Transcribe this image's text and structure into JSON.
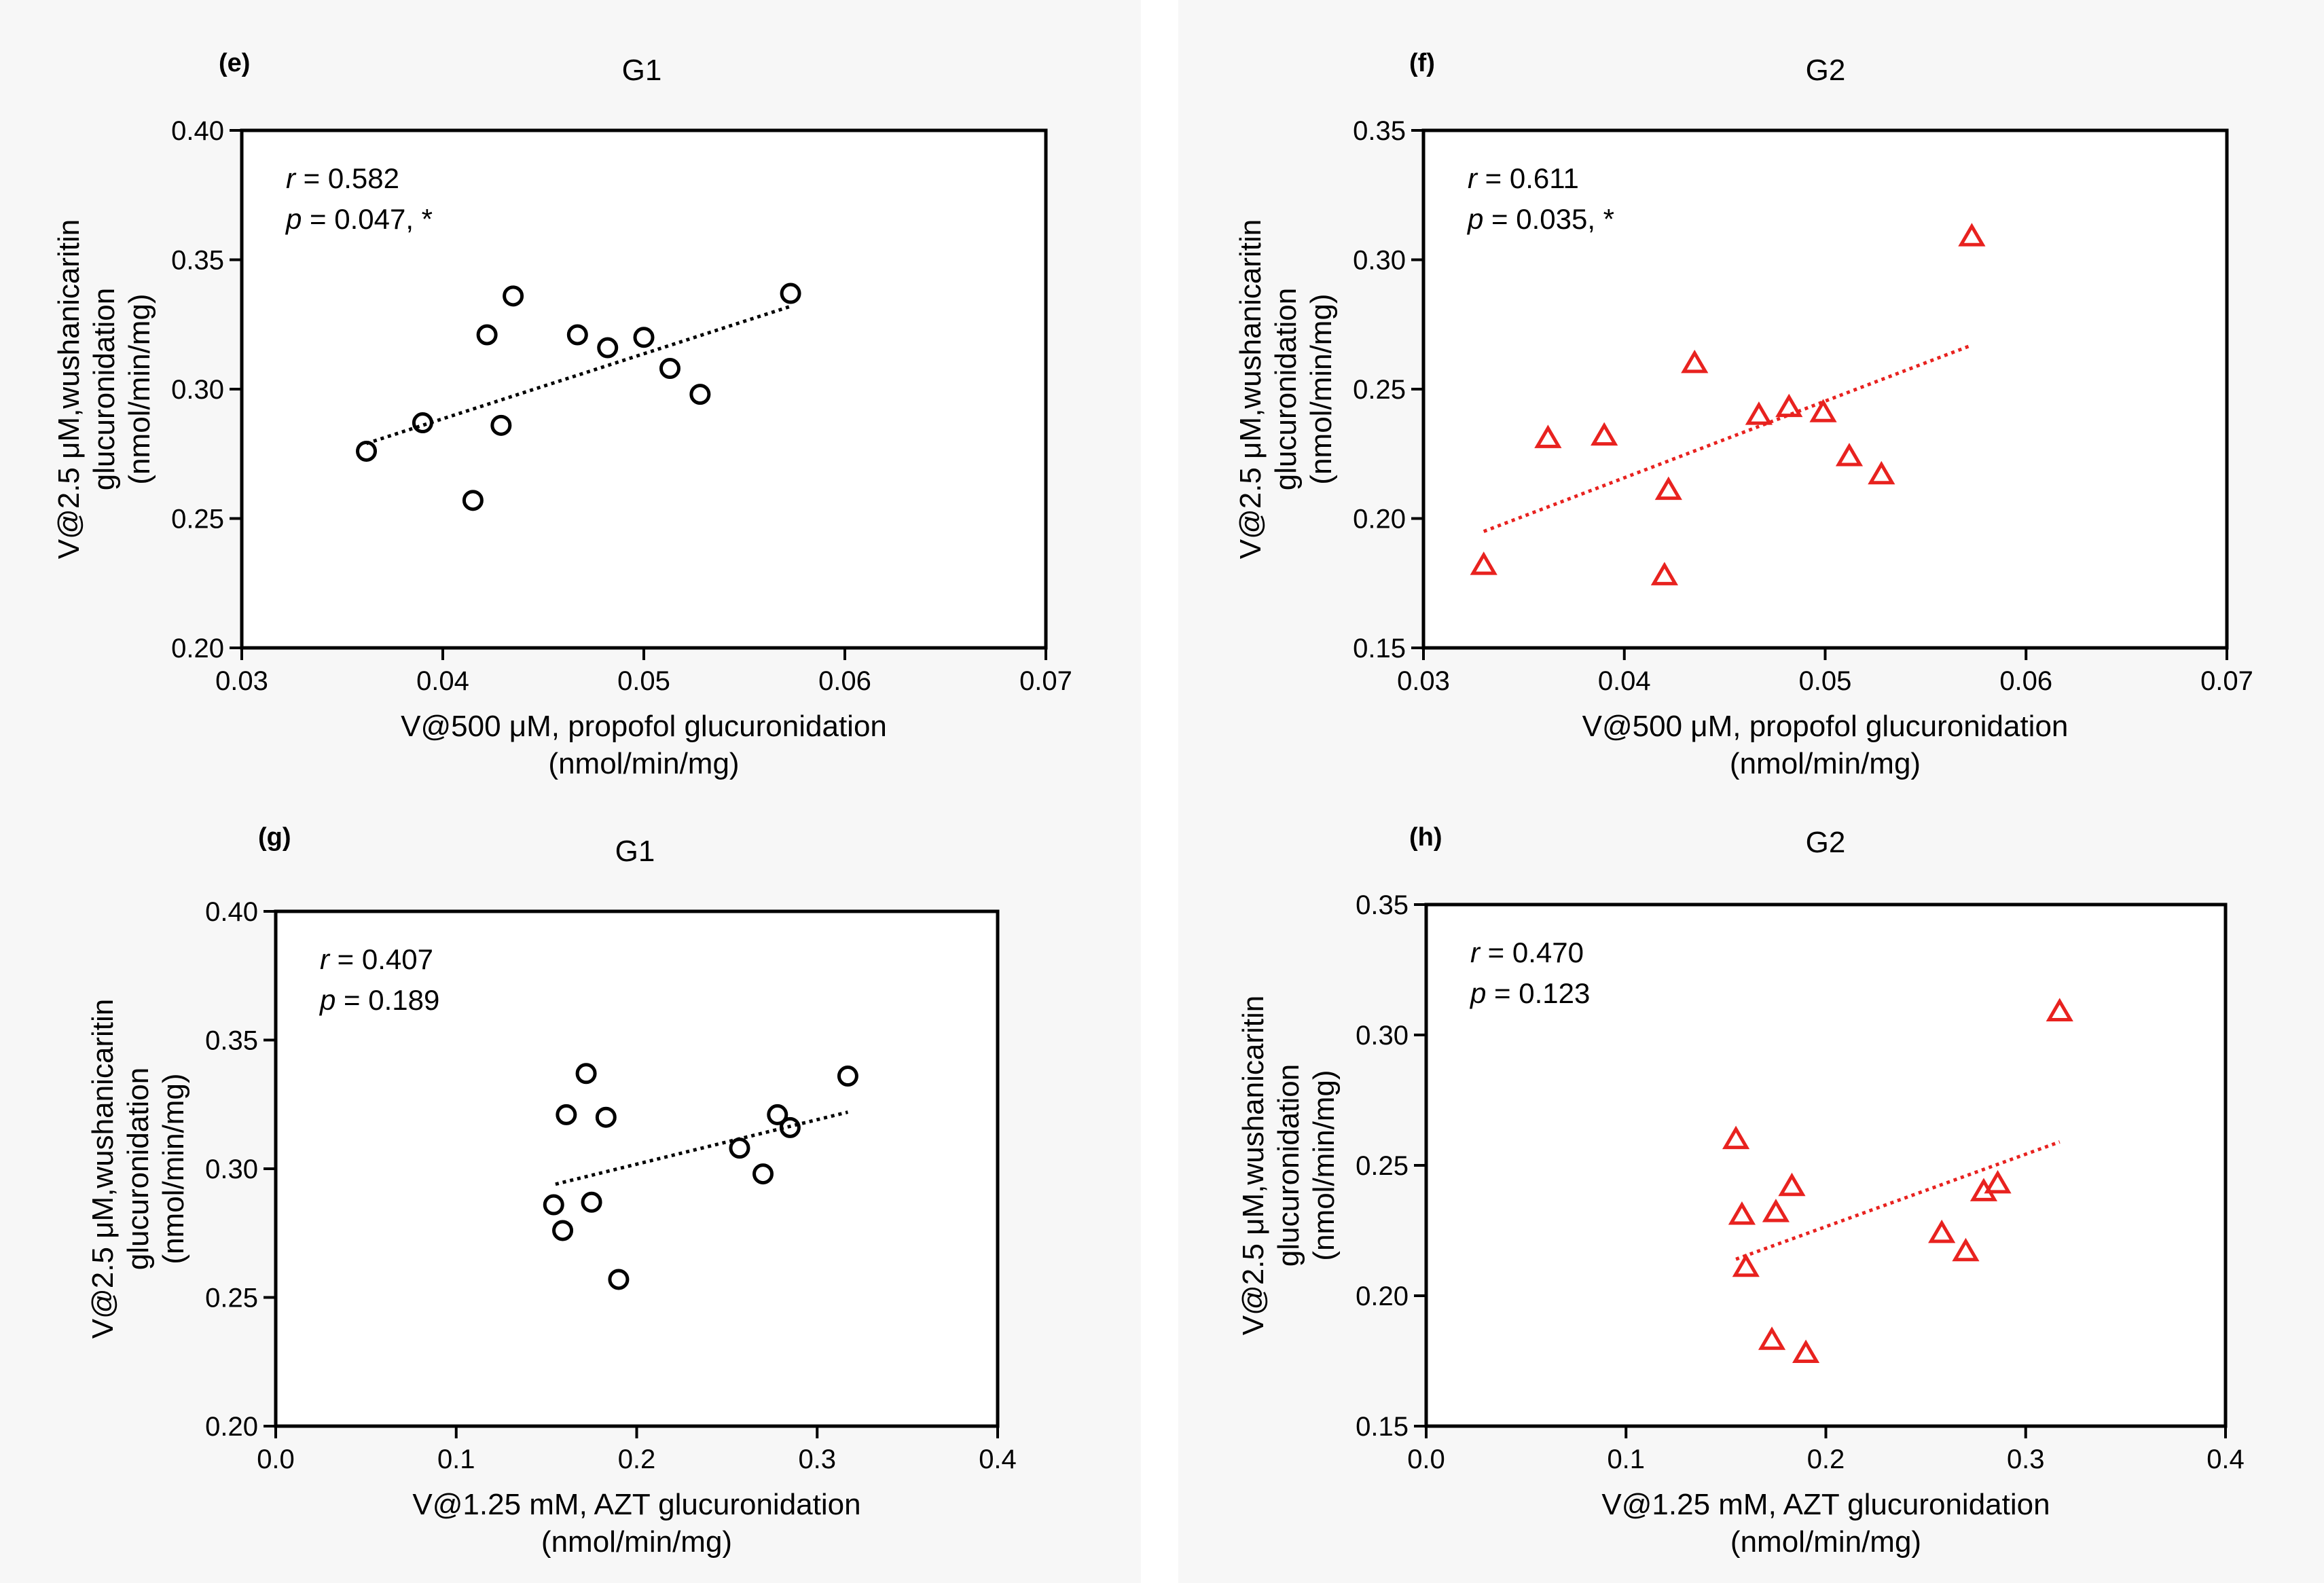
{
  "chart_data": [
    {
      "type": "scatter",
      "panel": "(e)",
      "title": "G1",
      "xlabel": [
        "V@500 μM, propofol glucuronidation",
        "(nmol/min/mg)"
      ],
      "ylabel": [
        "V@2.5 μM,wushanicaritin",
        "glucuronidation",
        "(nmol/min/mg)"
      ],
      "xlim": [
        0.03,
        0.07
      ],
      "ylim": [
        0.2,
        0.4
      ],
      "xticks": [
        0.03,
        0.04,
        0.05,
        0.06,
        0.07
      ],
      "xtick_labels": [
        "0.03",
        "0.04",
        "0.05",
        "0.06",
        "0.07"
      ],
      "yticks": [
        0.2,
        0.25,
        0.3,
        0.35,
        0.4
      ],
      "ytick_labels": [
        "0.20",
        "0.25",
        "0.30",
        "0.35",
        "0.40"
      ],
      "stats": {
        "r_label": "r",
        "r_text": " = 0.582",
        "p_label": "p",
        "p_text": " = 0.047, *"
      },
      "marker": "circle",
      "color": "#000000",
      "trendline": {
        "x": [
          0.0362,
          0.0573
        ],
        "y": [
          0.279,
          0.332
        ]
      },
      "x": [
        0.0362,
        0.039,
        0.0415,
        0.0422,
        0.0429,
        0.0435,
        0.0467,
        0.0482,
        0.05,
        0.0513,
        0.0528,
        0.0573
      ],
      "y": [
        0.276,
        0.287,
        0.257,
        0.321,
        0.286,
        0.336,
        0.321,
        0.316,
        0.32,
        0.308,
        0.298,
        0.337
      ]
    },
    {
      "type": "scatter",
      "panel": "(f)",
      "title": "G2",
      "xlabel": [
        "V@500 μM, propofol glucuronidation",
        "(nmol/min/mg)"
      ],
      "ylabel": [
        "V@2.5 μM,wushanicaritin",
        "glucuronidation",
        "(nmol/min/mg)"
      ],
      "xlim": [
        0.03,
        0.07
      ],
      "ylim": [
        0.15,
        0.35
      ],
      "xticks": [
        0.03,
        0.04,
        0.05,
        0.06,
        0.07
      ],
      "xtick_labels": [
        "0.03",
        "0.04",
        "0.05",
        "0.06",
        "0.07"
      ],
      "yticks": [
        0.15,
        0.2,
        0.25,
        0.3,
        0.35
      ],
      "ytick_labels": [
        "0.15",
        "0.20",
        "0.25",
        "0.30",
        "0.35"
      ],
      "stats": {
        "r_label": "r",
        "r_text": " = 0.611",
        "p_label": "p",
        "p_text": " = 0.035, *"
      },
      "marker": "triangle",
      "color": "#e8221f",
      "trendline": {
        "x": [
          0.033,
          0.0573
        ],
        "y": [
          0.195,
          0.267
        ]
      },
      "x": [
        0.033,
        0.0362,
        0.039,
        0.042,
        0.0422,
        0.0435,
        0.0467,
        0.0482,
        0.0499,
        0.0512,
        0.0528,
        0.0573
      ],
      "y": [
        0.182,
        0.231,
        0.232,
        0.178,
        0.211,
        0.26,
        0.24,
        0.243,
        0.241,
        0.224,
        0.217,
        0.309
      ]
    },
    {
      "type": "scatter",
      "panel": "(g)",
      "title": "G1",
      "xlabel": [
        "V@1.25 mM, AZT glucuronidation",
        "(nmol/min/mg)"
      ],
      "ylabel": [
        "V@2.5 μM,wushanicaritin",
        "glucuronidation",
        "(nmol/min/mg)"
      ],
      "xlim": [
        0.0,
        0.4
      ],
      "ylim": [
        0.2,
        0.4
      ],
      "xticks": [
        0.0,
        0.1,
        0.2,
        0.3,
        0.4
      ],
      "xtick_labels": [
        "0.0",
        "0.1",
        "0.2",
        "0.3",
        "0.4"
      ],
      "yticks": [
        0.2,
        0.25,
        0.3,
        0.35,
        0.4
      ],
      "ytick_labels": [
        "0.20",
        "0.25",
        "0.30",
        "0.35",
        "0.40"
      ],
      "stats": {
        "r_label": "r",
        "r_text": " = 0.407",
        "p_label": "p",
        "p_text": " = 0.189"
      },
      "marker": "circle",
      "color": "#000000",
      "trendline": {
        "x": [
          0.155,
          0.317
        ],
        "y": [
          0.294,
          0.322
        ]
      },
      "x": [
        0.154,
        0.159,
        0.161,
        0.172,
        0.175,
        0.183,
        0.19,
        0.257,
        0.27,
        0.278,
        0.285,
        0.317
      ],
      "y": [
        0.286,
        0.276,
        0.321,
        0.337,
        0.287,
        0.32,
        0.257,
        0.308,
        0.298,
        0.321,
        0.316,
        0.336
      ]
    },
    {
      "type": "scatter",
      "panel": "(h)",
      "title": "G2",
      "xlabel": [
        "V@1.25 mM, AZT glucuronidation",
        "(nmol/min/mg)"
      ],
      "ylabel": [
        "V@2.5 μM,wushanicaritin",
        "glucuronidation",
        "(nmol/min/mg)"
      ],
      "xlim": [
        0.0,
        0.4
      ],
      "ylim": [
        0.15,
        0.35
      ],
      "xticks": [
        0.0,
        0.1,
        0.2,
        0.3,
        0.4
      ],
      "xtick_labels": [
        "0.0",
        "0.1",
        "0.2",
        "0.3",
        "0.4"
      ],
      "yticks": [
        0.15,
        0.2,
        0.25,
        0.3,
        0.35
      ],
      "ytick_labels": [
        "0.15",
        "0.20",
        "0.25",
        "0.30",
        "0.35"
      ],
      "stats": {
        "r_label": "r",
        "r_text": " = 0.470",
        "p_label": "p",
        "p_text": " = 0.123"
      },
      "marker": "triangle",
      "color": "#e8221f",
      "trendline": {
        "x": [
          0.155,
          0.317
        ],
        "y": [
          0.214,
          0.259
        ]
      },
      "x": [
        0.155,
        0.158,
        0.16,
        0.173,
        0.175,
        0.183,
        0.19,
        0.258,
        0.27,
        0.279,
        0.286,
        0.317
      ],
      "y": [
        0.26,
        0.231,
        0.211,
        0.183,
        0.232,
        0.242,
        0.178,
        0.224,
        0.217,
        0.24,
        0.243,
        0.309
      ]
    }
  ]
}
